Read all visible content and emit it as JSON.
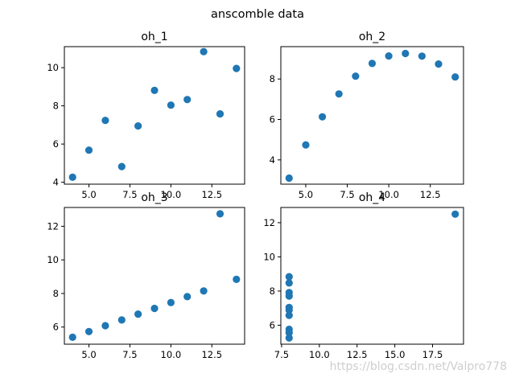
{
  "figure": {
    "suptitle": "anscomble data",
    "watermark": "https://blog.csdn.net/Valpro778"
  },
  "style": {
    "marker_color": "#1f77b4",
    "axis_color": "#000000"
  },
  "chart_data": [
    {
      "type": "scatter",
      "title": "oh_1",
      "xlabel": "",
      "ylabel": "",
      "grid": false,
      "xlim": [
        3.5,
        14.5
      ],
      "ylim": [
        3.9,
        11.1
      ],
      "xticks": [
        5,
        7.5,
        10,
        12.5
      ],
      "xtick_labels": [
        "5.0",
        "7.5",
        "10.0",
        "12.5"
      ],
      "yticks": [
        4,
        6,
        8,
        10
      ],
      "ytick_labels": [
        "4",
        "6",
        "8",
        "10"
      ],
      "x": [
        10,
        8,
        13,
        9,
        11,
        14,
        6,
        4,
        12,
        7,
        5
      ],
      "y": [
        8.04,
        6.95,
        7.58,
        8.81,
        8.33,
        9.96,
        7.24,
        4.26,
        10.84,
        4.82,
        5.68
      ]
    },
    {
      "type": "scatter",
      "title": "oh_2",
      "xlabel": "",
      "ylabel": "",
      "grid": false,
      "xlim": [
        3.5,
        14.5
      ],
      "ylim": [
        2.8,
        9.6
      ],
      "xticks": [
        5,
        7.5,
        10,
        12.5
      ],
      "xtick_labels": [
        "5.0",
        "7.5",
        "10.0",
        "12.5"
      ],
      "yticks": [
        4,
        6,
        8
      ],
      "ytick_labels": [
        "4",
        "6",
        "8"
      ],
      "x": [
        10,
        8,
        13,
        9,
        11,
        14,
        6,
        4,
        12,
        7,
        5
      ],
      "y": [
        9.14,
        8.14,
        8.74,
        8.77,
        9.26,
        8.1,
        6.13,
        3.1,
        9.13,
        7.26,
        4.74
      ]
    },
    {
      "type": "scatter",
      "title": "oh_3",
      "xlabel": "",
      "ylabel": "",
      "grid": false,
      "xlim": [
        3.5,
        14.5
      ],
      "ylim": [
        4.98,
        13.12
      ],
      "xticks": [
        5,
        7.5,
        10,
        12.5
      ],
      "xtick_labels": [
        "5.0",
        "7.5",
        "10.0",
        "12.5"
      ],
      "yticks": [
        6,
        8,
        10,
        12
      ],
      "ytick_labels": [
        "6",
        "8",
        "10",
        "12"
      ],
      "x": [
        10,
        8,
        13,
        9,
        11,
        14,
        6,
        4,
        12,
        7,
        5
      ],
      "y": [
        7.46,
        6.77,
        12.74,
        7.11,
        7.81,
        8.84,
        6.08,
        5.39,
        8.15,
        6.42,
        5.73
      ]
    },
    {
      "type": "scatter",
      "title": "oh_4",
      "xlabel": "",
      "ylabel": "",
      "grid": false,
      "xlim": [
        7.45,
        19.55
      ],
      "ylim": [
        4.89,
        12.89
      ],
      "xticks": [
        7.5,
        10,
        12.5,
        15,
        17.5
      ],
      "xtick_labels": [
        "7.5",
        "10.0",
        "12.5",
        "15.0",
        "17.5"
      ],
      "yticks": [
        6,
        8,
        10,
        12
      ],
      "ytick_labels": [
        "6",
        "8",
        "10",
        "12"
      ],
      "x": [
        8,
        8,
        8,
        8,
        8,
        8,
        8,
        19,
        8,
        8,
        8
      ],
      "y": [
        6.58,
        5.76,
        7.71,
        8.84,
        8.47,
        7.04,
        5.25,
        12.5,
        5.56,
        7.91,
        6.89
      ]
    }
  ]
}
